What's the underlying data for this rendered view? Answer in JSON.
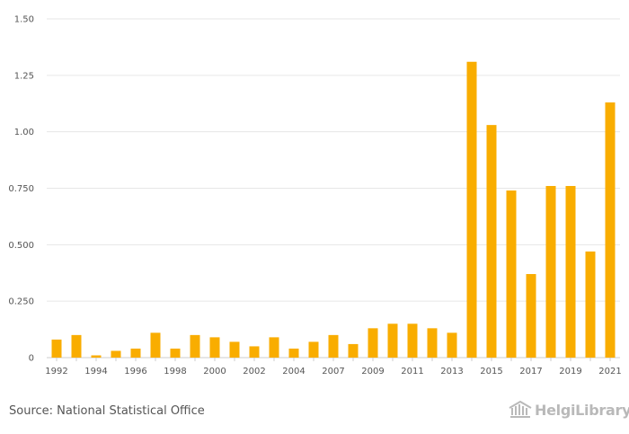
{
  "chart_data": {
    "type": "bar",
    "title": "",
    "xlabel": "",
    "ylabel": "",
    "ylim": [
      0,
      1.5
    ],
    "yticks": [
      {
        "value": 0,
        "label": "0"
      },
      {
        "value": 0.25,
        "label": "0.250"
      },
      {
        "value": 0.5,
        "label": "0.500"
      },
      {
        "value": 0.75,
        "label": "0.750"
      },
      {
        "value": 1.0,
        "label": "1.00"
      },
      {
        "value": 1.25,
        "label": "1.25"
      },
      {
        "value": 1.5,
        "label": "1.50"
      }
    ],
    "categories": [
      "1992",
      "1993",
      "1994",
      "1995",
      "1996",
      "1997",
      "1998",
      "1999",
      "2000",
      "2001",
      "2002",
      "2003",
      "2004",
      "2005",
      "2007",
      "2008",
      "2009",
      "2010",
      "2011",
      "2012",
      "2013",
      "2014",
      "2015",
      "2016",
      "2017",
      "2018",
      "2019",
      "2020",
      "2021"
    ],
    "visible_xlabels": [
      "1992",
      "1994",
      "1996",
      "1998",
      "2000",
      "2002",
      "2004",
      "2007",
      "2009",
      "2011",
      "2013",
      "2015",
      "2017",
      "2019",
      "2021"
    ],
    "values": [
      0.08,
      0.1,
      0.01,
      0.03,
      0.04,
      0.11,
      0.04,
      0.1,
      0.09,
      0.07,
      0.05,
      0.09,
      0.04,
      0.07,
      0.1,
      0.06,
      0.13,
      0.15,
      0.15,
      0.13,
      0.11,
      1.31,
      1.03,
      0.74,
      0.37,
      0.76,
      0.76,
      0.47,
      1.13
    ],
    "bar_color": "#f9ad00",
    "grid": true
  },
  "footer": {
    "source": "Source: National Statistical Office",
    "logo": "HelgiLibrary."
  }
}
